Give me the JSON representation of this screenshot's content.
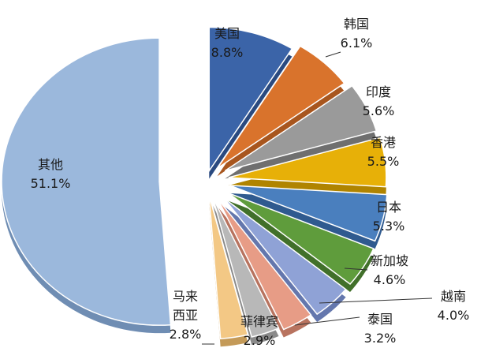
{
  "chart_data": {
    "type": "pie",
    "exploded": true,
    "style": "3d",
    "title": "",
    "series": [
      {
        "name": "美国",
        "label_lines": [
          "美国"
        ],
        "value": 8.8,
        "value_label": "8.8%",
        "color": "#3b64a8",
        "side": "#2a4a80"
      },
      {
        "name": "韩国",
        "label_lines": [
          "韩国"
        ],
        "value": 6.1,
        "value_label": "6.1%",
        "color": "#d9732c",
        "side": "#a8561e"
      },
      {
        "name": "印度",
        "label_lines": [
          "印度"
        ],
        "value": 5.6,
        "value_label": "5.6%",
        "color": "#9a9a9a",
        "side": "#6f6f6f"
      },
      {
        "name": "香港",
        "label_lines": [
          "香港"
        ],
        "value": 5.5,
        "value_label": "5.5%",
        "color": "#e7b008",
        "side": "#b08400"
      },
      {
        "name": "日本",
        "label_lines": [
          "日本"
        ],
        "value": 5.3,
        "value_label": "5.3%",
        "color": "#4a7fbe",
        "side": "#2f5a8f"
      },
      {
        "name": "新加坡",
        "label_lines": [
          "新加坡"
        ],
        "value": 4.6,
        "value_label": "4.6%",
        "color": "#5f9c3c",
        "side": "#41702a"
      },
      {
        "name": "越南",
        "label_lines": [
          "越南"
        ],
        "value": 4.0,
        "value_label": "4.0%",
        "color": "#8fa2d6",
        "side": "#6477ad"
      },
      {
        "name": "泰国",
        "label_lines": [
          "泰国"
        ],
        "value": 3.2,
        "value_label": "3.2%",
        "color": "#e79c86",
        "side": "#b8735f"
      },
      {
        "name": "菲律宾",
        "label_lines": [
          "菲律宾"
        ],
        "value": 2.9,
        "value_label": "2.9%",
        "color": "#b8b8b8",
        "side": "#8a8a8a"
      },
      {
        "name": "马来西亚",
        "label_lines": [
          "马来",
          "西亚"
        ],
        "value": 2.8,
        "value_label": "2.8%",
        "color": "#f3c885",
        "side": "#c49a58"
      },
      {
        "name": "其他",
        "label_lines": [
          "其他"
        ],
        "value": 51.1,
        "value_label": "51.1%",
        "color": "#9bb8dc",
        "side": "#6f8db3"
      }
    ]
  }
}
